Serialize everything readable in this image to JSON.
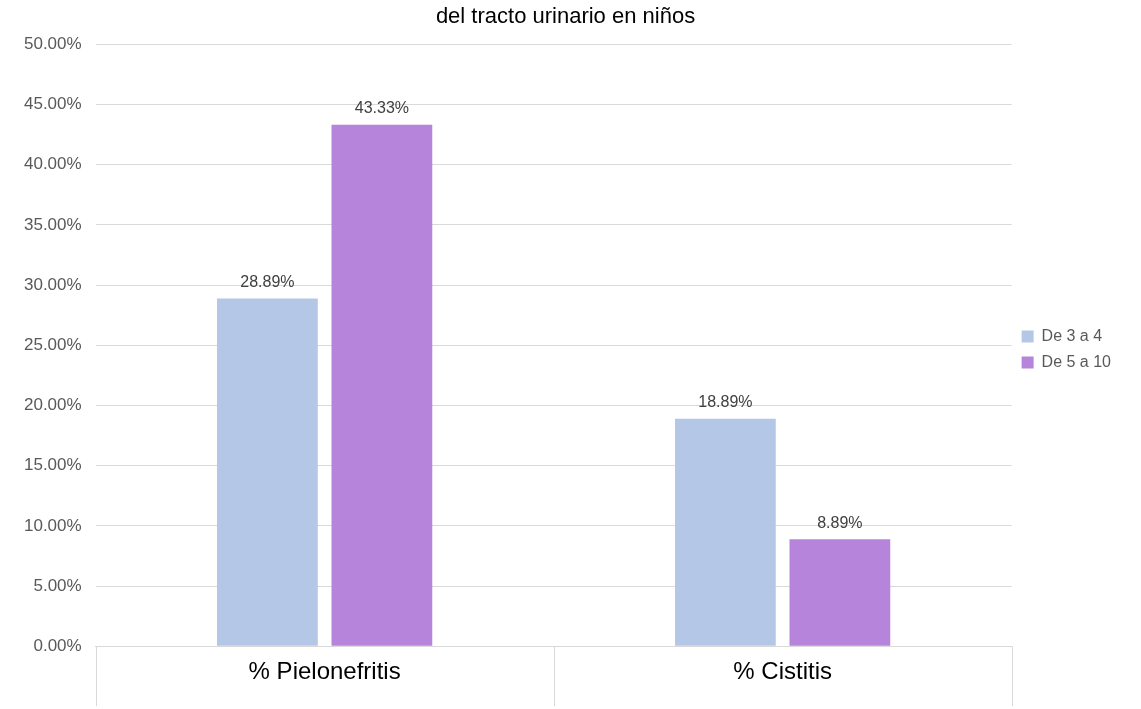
{
  "chart_data": {
    "type": "bar",
    "title": "del tracto urinario en niños",
    "categories": [
      "% Pielonefritis",
      "% Cistitis"
    ],
    "series": [
      {
        "name": "De 3 a 4",
        "color": "#b4c7e7",
        "values": [
          28.89,
          18.89
        ]
      },
      {
        "name": "De 5 a 10",
        "color": "#b685db",
        "values": [
          43.33,
          8.89
        ]
      }
    ],
    "ylim": [
      0,
      50
    ],
    "yticks": [
      {
        "value": 0,
        "label": "0.00%"
      },
      {
        "value": 5,
        "label": "5.00%"
      },
      {
        "value": 10,
        "label": "10.00%"
      },
      {
        "value": 15,
        "label": "15.00%"
      },
      {
        "value": 20,
        "label": "20.00%"
      },
      {
        "value": 25,
        "label": "25.00%"
      },
      {
        "value": 30,
        "label": "30.00%"
      },
      {
        "value": 35,
        "label": "35.00%"
      },
      {
        "value": 40,
        "label": "40.00%"
      },
      {
        "value": 45,
        "label": "45.00%"
      },
      {
        "value": 50,
        "label": "50.00%"
      }
    ],
    "value_labels": [
      [
        "28.89%",
        "18.89%"
      ],
      [
        "43.33%",
        "8.89%"
      ]
    ],
    "grid": "y",
    "legend": "right"
  }
}
